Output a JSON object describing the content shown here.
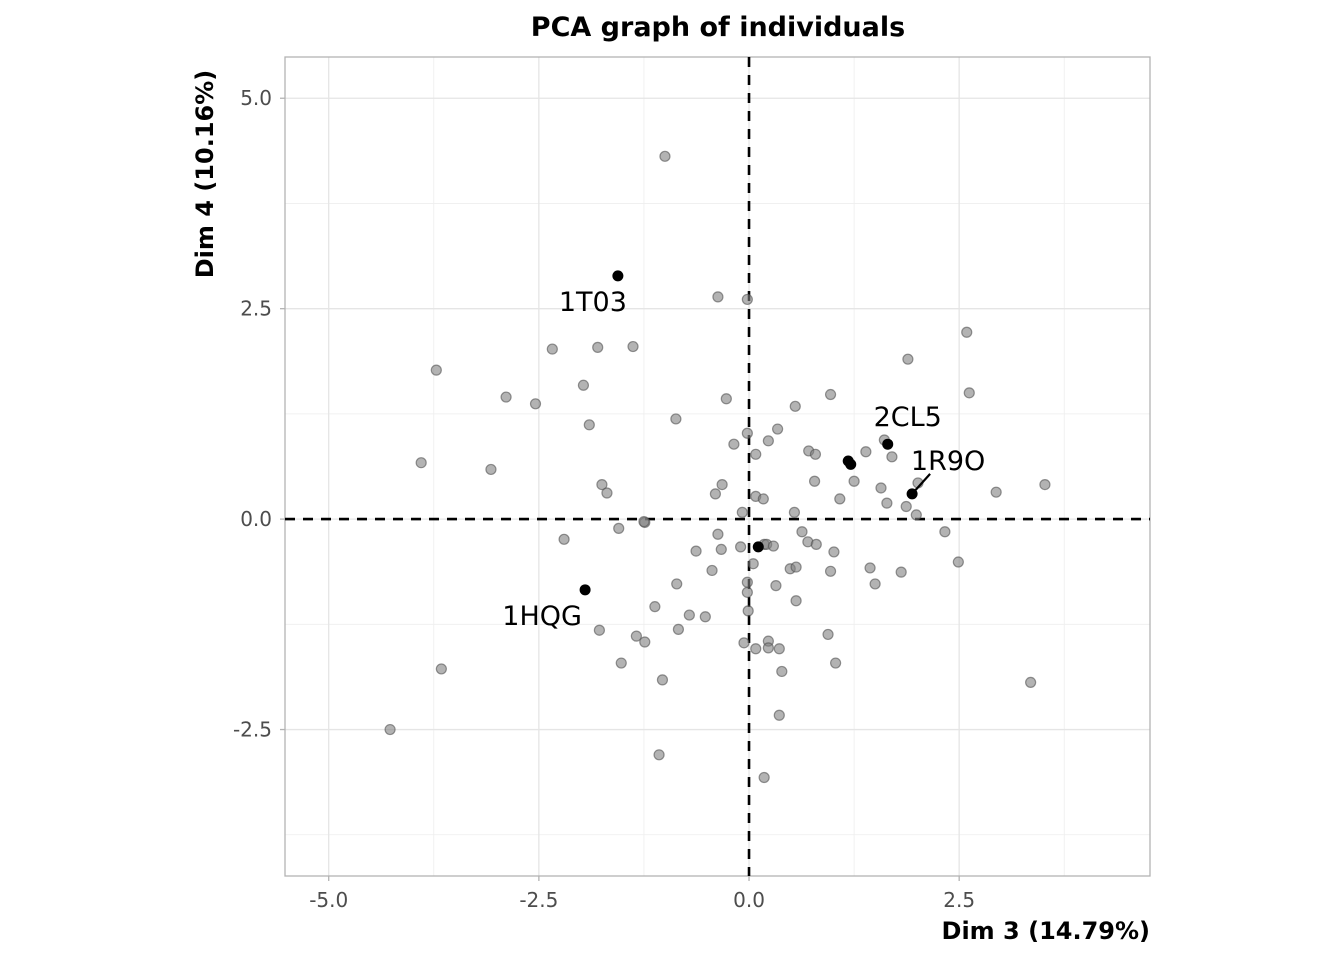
{
  "chart_data": {
    "type": "scatter",
    "title": "PCA graph of individuals",
    "xlabel": "Dim 3 (14.79%)",
    "ylabel": "Dim 4 (10.16%)",
    "xlim": [
      -5.52,
      4.77
    ],
    "ylim": [
      -4.24,
      5.49
    ],
    "x_ticks": [
      -5.0,
      -2.5,
      0.0,
      2.5
    ],
    "x_tick_labels": [
      "-5.0",
      "-2.5",
      "0.0",
      "2.5"
    ],
    "y_ticks": [
      -2.5,
      0.0,
      2.5,
      5.0
    ],
    "y_tick_labels": [
      "-2.5",
      "0.0",
      "2.5",
      "5.0"
    ],
    "grid": true,
    "reference_lines": {
      "x": 0,
      "y": 0,
      "style": "dashed"
    },
    "colors": {
      "background_points": "#808080",
      "highlight_points": "#000000"
    },
    "labeled_points": [
      {
        "label": "1T03",
        "x": -1.56,
        "y": 2.89
      },
      {
        "label": "2CL5",
        "x": 1.65,
        "y": 0.89
      },
      {
        "label": "1R9O",
        "x": 1.94,
        "y": 0.3
      },
      {
        "label": "1HQG",
        "x": -1.95,
        "y": -0.84
      }
    ],
    "highlight_unlabeled": [
      {
        "x": 1.18,
        "y": 0.69
      },
      {
        "x": 1.21,
        "y": 0.65
      },
      {
        "x": 0.11,
        "y": -0.33
      }
    ],
    "points": [
      {
        "x": -1.0,
        "y": 4.31
      },
      {
        "x": -0.37,
        "y": 2.64
      },
      {
        "x": -0.02,
        "y": 2.61
      },
      {
        "x": 2.59,
        "y": 2.22
      },
      {
        "x": -3.72,
        "y": 1.77
      },
      {
        "x": -3.9,
        "y": 0.67
      },
      {
        "x": -2.89,
        "y": 1.45
      },
      {
        "x": -3.07,
        "y": 0.59
      },
      {
        "x": -2.54,
        "y": 1.37
      },
      {
        "x": -2.34,
        "y": 2.02
      },
      {
        "x": -1.8,
        "y": 2.04
      },
      {
        "x": -1.38,
        "y": 2.05
      },
      {
        "x": -1.97,
        "y": 1.59
      },
      {
        "x": -1.9,
        "y": 1.12
      },
      {
        "x": -1.75,
        "y": 0.41
      },
      {
        "x": -1.69,
        "y": 0.31
      },
      {
        "x": -0.87,
        "y": 1.19
      },
      {
        "x": -0.27,
        "y": 1.43
      },
      {
        "x": 0.55,
        "y": 1.34
      },
      {
        "x": 0.97,
        "y": 1.48
      },
      {
        "x": 1.89,
        "y": 1.9
      },
      {
        "x": 2.62,
        "y": 1.5
      },
      {
        "x": -0.02,
        "y": 1.02
      },
      {
        "x": -0.18,
        "y": 0.89
      },
      {
        "x": 0.34,
        "y": 1.07
      },
      {
        "x": 0.23,
        "y": 0.93
      },
      {
        "x": 0.08,
        "y": 0.77
      },
      {
        "x": 0.71,
        "y": 0.81
      },
      {
        "x": 0.79,
        "y": 0.77
      },
      {
        "x": 1.39,
        "y": 0.8
      },
      {
        "x": 1.61,
        "y": 0.94
      },
      {
        "x": 1.7,
        "y": 0.74
      },
      {
        "x": -0.4,
        "y": 0.3
      },
      {
        "x": -0.32,
        "y": 0.41
      },
      {
        "x": 0.08,
        "y": 0.27
      },
      {
        "x": 0.17,
        "y": 0.24
      },
      {
        "x": -0.08,
        "y": 0.08
      },
      {
        "x": 0.54,
        "y": 0.08
      },
      {
        "x": 0.78,
        "y": 0.45
      },
      {
        "x": 1.08,
        "y": 0.24
      },
      {
        "x": 1.25,
        "y": 0.45
      },
      {
        "x": 1.57,
        "y": 0.37
      },
      {
        "x": 1.64,
        "y": 0.19
      },
      {
        "x": 1.87,
        "y": 0.15
      },
      {
        "x": 2.01,
        "y": 0.43
      },
      {
        "x": 1.99,
        "y": 0.05
      },
      {
        "x": 2.94,
        "y": 0.32
      },
      {
        "x": 3.52,
        "y": 0.41
      },
      {
        "x": 2.33,
        "y": -0.15
      },
      {
        "x": 2.49,
        "y": -0.51
      },
      {
        "x": 1.44,
        "y": -0.58
      },
      {
        "x": 1.5,
        "y": -0.77
      },
      {
        "x": 1.81,
        "y": -0.63
      },
      {
        "x": 3.35,
        "y": -1.94
      },
      {
        "x": -2.2,
        "y": -0.24
      },
      {
        "x": -1.55,
        "y": -0.11
      },
      {
        "x": -1.24,
        "y": -0.04
      },
      {
        "x": -1.25,
        "y": -0.03
      },
      {
        "x": -0.37,
        "y": -0.18
      },
      {
        "x": -0.63,
        "y": -0.38
      },
      {
        "x": -0.33,
        "y": -0.36
      },
      {
        "x": -0.1,
        "y": -0.33
      },
      {
        "x": 0.18,
        "y": -0.3
      },
      {
        "x": 0.21,
        "y": -0.3
      },
      {
        "x": 0.29,
        "y": -0.32
      },
      {
        "x": 0.63,
        "y": -0.15
      },
      {
        "x": 0.7,
        "y": -0.27
      },
      {
        "x": 0.8,
        "y": -0.3
      },
      {
        "x": 1.01,
        "y": -0.39
      },
      {
        "x": 0.05,
        "y": -0.53
      },
      {
        "x": -0.44,
        "y": -0.61
      },
      {
        "x": 0.49,
        "y": -0.59
      },
      {
        "x": 0.56,
        "y": -0.57
      },
      {
        "x": 0.97,
        "y": -0.62
      },
      {
        "x": -0.86,
        "y": -0.77
      },
      {
        "x": -0.02,
        "y": -0.75
      },
      {
        "x": -0.02,
        "y": -0.87
      },
      {
        "x": 0.32,
        "y": -0.79
      },
      {
        "x": 0.56,
        "y": -0.97
      },
      {
        "x": -1.12,
        "y": -1.04
      },
      {
        "x": -0.71,
        "y": -1.14
      },
      {
        "x": -0.52,
        "y": -1.16
      },
      {
        "x": -0.01,
        "y": -1.09
      },
      {
        "x": -1.78,
        "y": -1.32
      },
      {
        "x": -0.84,
        "y": -1.31
      },
      {
        "x": -1.34,
        "y": -1.39
      },
      {
        "x": -1.24,
        "y": -1.46
      },
      {
        "x": -0.06,
        "y": -1.47
      },
      {
        "x": 0.08,
        "y": -1.54
      },
      {
        "x": 0.23,
        "y": -1.45
      },
      {
        "x": 0.23,
        "y": -1.53
      },
      {
        "x": 0.36,
        "y": -1.54
      },
      {
        "x": 0.94,
        "y": -1.37
      },
      {
        "x": 1.03,
        "y": -1.71
      },
      {
        "x": 0.39,
        "y": -1.81
      },
      {
        "x": -1.52,
        "y": -1.71
      },
      {
        "x": -1.03,
        "y": -1.91
      },
      {
        "x": 0.36,
        "y": -2.33
      },
      {
        "x": -1.07,
        "y": -2.8
      },
      {
        "x": 0.18,
        "y": -3.07
      },
      {
        "x": -3.66,
        "y": -1.78
      },
      {
        "x": -4.27,
        "y": -2.5
      }
    ]
  }
}
